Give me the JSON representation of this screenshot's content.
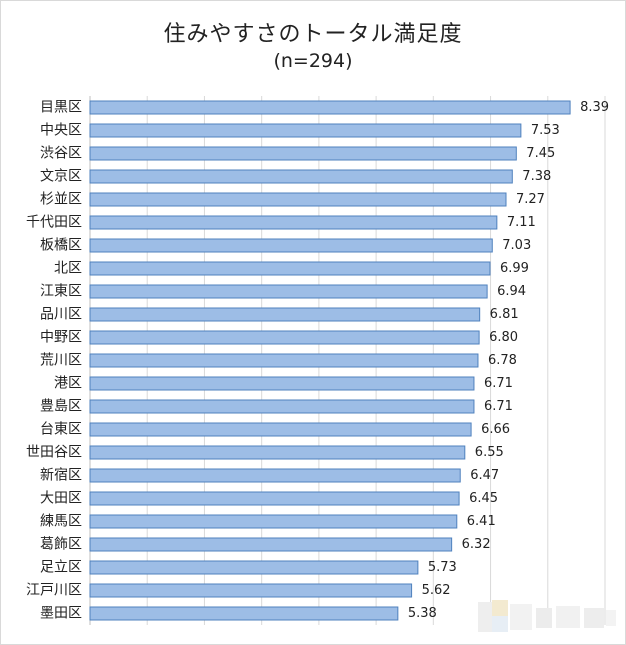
{
  "chart_data": {
    "type": "bar",
    "orientation": "horizontal",
    "title": "住みやすさのトータル満足度",
    "subtitle": "(n=294)",
    "xlabel": "",
    "ylabel": "",
    "xlim": [
      0,
      9
    ],
    "grid": true,
    "bar_color": "#9dbde6",
    "bar_edge_color": "#4f81bd",
    "categories": [
      "目黒区",
      "中央区",
      "渋谷区",
      "文京区",
      "杉並区",
      "千代田区",
      "板橋区",
      "北区",
      "江東区",
      "品川区",
      "中野区",
      "荒川区",
      "港区",
      "豊島区",
      "台東区",
      "世田谷区",
      "新宿区",
      "大田区",
      "練馬区",
      "葛飾区",
      "足立区",
      "江戸川区",
      "墨田区"
    ],
    "values": [
      8.39,
      7.53,
      7.45,
      7.38,
      7.27,
      7.11,
      7.03,
      6.99,
      6.94,
      6.81,
      6.8,
      6.78,
      6.71,
      6.71,
      6.66,
      6.55,
      6.47,
      6.45,
      6.41,
      6.32,
      5.73,
      5.62,
      5.38
    ],
    "data_labels": [
      "8.39",
      "7.53",
      "7.45",
      "7.38",
      "7.27",
      "7.11",
      "7.03",
      "6.99",
      "6.94",
      "6.81",
      "6.80",
      "6.78",
      "6.71",
      "6.71",
      "6.66",
      "6.55",
      "6.47",
      "6.45",
      "6.41",
      "6.32",
      "5.73",
      "5.62",
      "5.38"
    ]
  }
}
